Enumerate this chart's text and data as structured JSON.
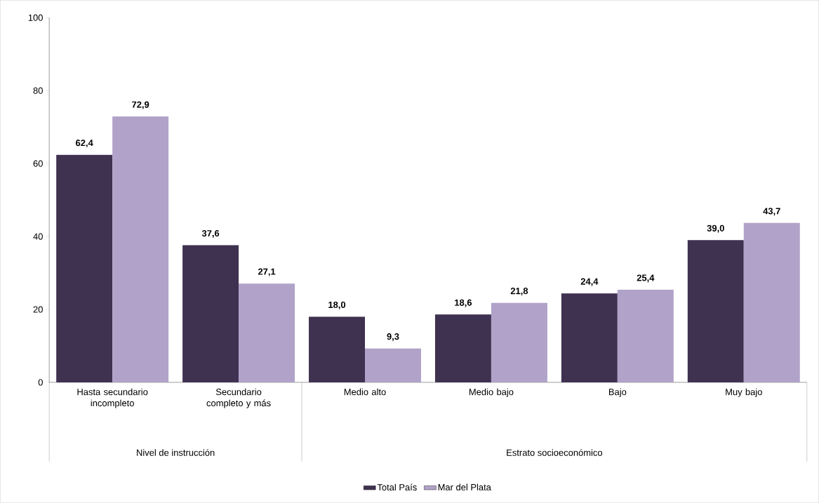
{
  "chart_data": {
    "type": "bar",
    "categories": [
      "Hasta secundario incompleto",
      "Secundario completo y más",
      "Medio alto",
      "Medio bajo",
      "Bajo",
      "Muy bajo"
    ],
    "series": [
      {
        "name": "Total País",
        "color": "#3f3150",
        "values": [
          62.4,
          37.6,
          18.0,
          18.6,
          24.4,
          39.0
        ],
        "value_labels": [
          "62,4",
          "37,6",
          "18,0",
          "18,6",
          "24,4",
          "39,0"
        ]
      },
      {
        "name": "Mar del Plata",
        "color": "#b0a2c8",
        "values": [
          72.9,
          27.1,
          9.3,
          21.8,
          25.4,
          43.7
        ],
        "value_labels": [
          "72,9",
          "27,1",
          "9,3",
          "21,8",
          "25,4",
          "43,7"
        ]
      }
    ],
    "annotations": [
      "Nivel de instrucción",
      "Estrato socioeconómico"
    ],
    "ylim": [
      0,
      100
    ],
    "yticks": [
      0,
      20,
      40,
      60,
      80,
      100
    ],
    "grid": false,
    "legend": "bottom"
  }
}
